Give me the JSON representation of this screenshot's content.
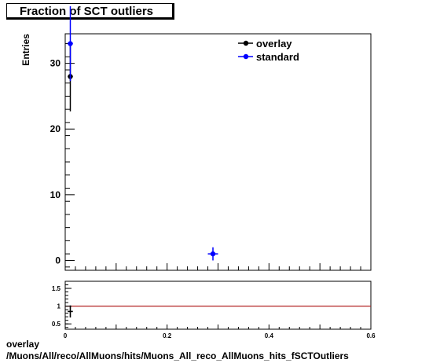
{
  "title": "Fraction of SCT outliers",
  "footer": {
    "line1": "overlay",
    "line2": "/Muons/All/reco/AllMuons/hits/Muons_All_reco_AllMuons_hits_fSCTOutliers"
  },
  "chart_data": [
    {
      "type": "scatter",
      "ylabel": "Entries",
      "xlim": [
        0,
        0.6
      ],
      "ylim": [
        -1.5,
        34.5
      ],
      "y_ticks": [
        0,
        10,
        20,
        30
      ],
      "legend": {
        "placement": "top-right",
        "entries": [
          "overlay",
          "standard"
        ]
      },
      "series": [
        {
          "name": "overlay",
          "color": "#000000",
          "points": [
            {
              "x": 0.01,
              "y": 28,
              "yerr": 5.3,
              "xerr": 0.005
            }
          ]
        },
        {
          "name": "standard",
          "color": "#0000ff",
          "points": [
            {
              "x": 0.01,
              "y": 33,
              "yerr": 5.7,
              "xerr": 0.005
            },
            {
              "x": 0.29,
              "y": 1,
              "yerr": 1,
              "xerr": 0.01
            }
          ]
        }
      ]
    },
    {
      "type": "scatter",
      "xlim": [
        0,
        0.6
      ],
      "ylim": [
        0.35,
        1.7
      ],
      "x_ticks": [
        "0",
        "0.2",
        "0.4",
        "0.6"
      ],
      "y_ticks": [
        "0.5",
        "1",
        "1.5"
      ],
      "reference_line": {
        "y": 1,
        "color": "#b22222"
      },
      "points": [
        {
          "x": 0.01,
          "y": 0.85,
          "yerr": 0.17,
          "xerr": 0.005
        }
      ]
    }
  ]
}
